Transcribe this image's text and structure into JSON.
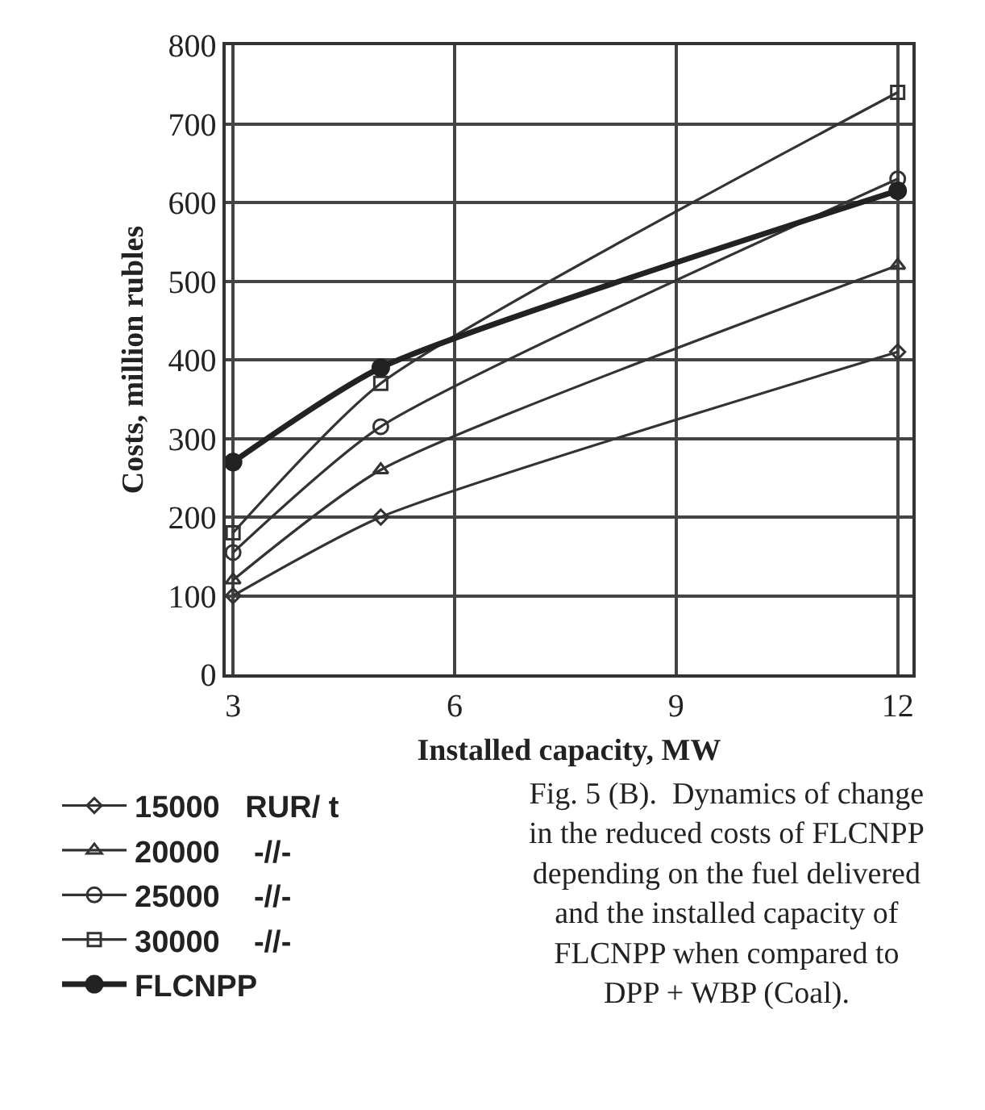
{
  "chart_data": {
    "type": "line",
    "xlabel": "Installed capacity, MW",
    "ylabel": "Costs, million rubles",
    "x": [
      3,
      5,
      12
    ],
    "series": [
      {
        "name": "15000   RUR/ t",
        "color": "#333333",
        "marker": "diamond",
        "values": [
          100,
          200,
          410
        ]
      },
      {
        "name": "20000    -//-",
        "color": "#333333",
        "marker": "triangle",
        "values": [
          120,
          260,
          520
        ]
      },
      {
        "name": "25000    -//-",
        "color": "#333333",
        "marker": "circle",
        "values": [
          155,
          315,
          630
        ]
      },
      {
        "name": "30000    -//-",
        "color": "#333333",
        "marker": "square",
        "values": [
          180,
          370,
          740
        ]
      },
      {
        "name": "FLCNPP",
        "color": "#222222",
        "marker": "filled-circle",
        "values": [
          270,
          390,
          615
        ]
      }
    ],
    "xlim": [
      2.9,
      12.2
    ],
    "xticks": [
      3,
      6,
      9,
      12
    ],
    "ylim": [
      0,
      800
    ],
    "yticks": [
      0,
      100,
      200,
      300,
      400,
      500,
      600,
      700,
      800
    ],
    "grid": true,
    "legend": "bottom left",
    "annotations": [
      "Fig. 5 (B).  Dynamics of change\nin the reduced costs of FLCNPP\ndepending on the fuel delivered\nand the installed capacity of\nFLCNPP when compared to\nDPP + WBP (Coal)."
    ]
  }
}
